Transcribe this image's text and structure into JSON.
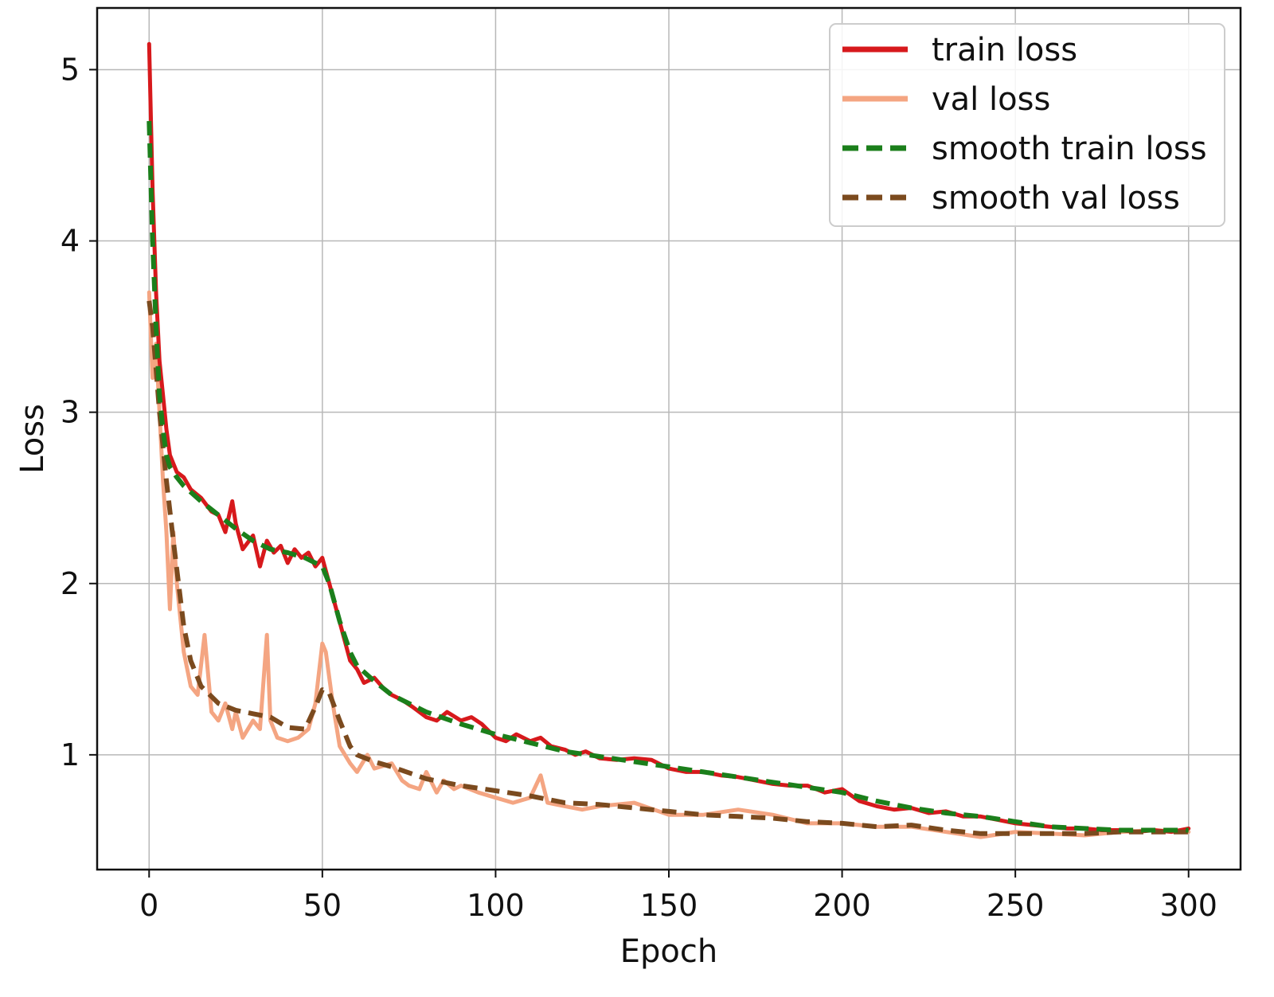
{
  "chart_data": {
    "type": "line",
    "title": "",
    "xlabel": "Epoch",
    "ylabel": "Loss",
    "xlim": [
      -15,
      315
    ],
    "ylim": [
      0.33,
      5.36
    ],
    "xticks": [
      0,
      50,
      100,
      150,
      200,
      250,
      300
    ],
    "yticks": [
      1,
      2,
      3,
      4,
      5
    ],
    "grid": true,
    "legend_position": "top-right",
    "series": [
      {
        "name": "train loss",
        "color": "#d7191c",
        "style": "solid",
        "x": [
          0,
          1,
          2,
          3,
          4,
          5,
          6,
          8,
          10,
          12,
          15,
          18,
          20,
          22,
          24,
          25,
          27,
          30,
          32,
          34,
          36,
          38,
          40,
          42,
          44,
          46,
          48,
          50,
          52,
          54,
          56,
          58,
          60,
          62,
          65,
          68,
          70,
          73,
          76,
          80,
          83,
          86,
          90,
          93,
          96,
          100,
          103,
          106,
          110,
          113,
          116,
          120,
          123,
          126,
          130,
          135,
          140,
          145,
          150,
          155,
          160,
          165,
          170,
          175,
          180,
          185,
          190,
          195,
          200,
          205,
          210,
          215,
          220,
          225,
          230,
          235,
          240,
          245,
          250,
          255,
          260,
          265,
          270,
          275,
          280,
          285,
          290,
          295,
          300
        ],
        "values": [
          5.15,
          4.3,
          3.7,
          3.3,
          3.1,
          2.9,
          2.75,
          2.65,
          2.62,
          2.55,
          2.5,
          2.42,
          2.4,
          2.3,
          2.48,
          2.35,
          2.2,
          2.28,
          2.1,
          2.25,
          2.18,
          2.22,
          2.12,
          2.2,
          2.15,
          2.18,
          2.1,
          2.15,
          2.0,
          1.85,
          1.7,
          1.55,
          1.5,
          1.42,
          1.45,
          1.38,
          1.35,
          1.32,
          1.28,
          1.22,
          1.2,
          1.25,
          1.2,
          1.22,
          1.18,
          1.1,
          1.08,
          1.12,
          1.08,
          1.1,
          1.05,
          1.03,
          1.0,
          1.02,
          0.98,
          0.97,
          0.98,
          0.97,
          0.92,
          0.9,
          0.9,
          0.88,
          0.87,
          0.85,
          0.83,
          0.82,
          0.82,
          0.78,
          0.8,
          0.73,
          0.7,
          0.68,
          0.69,
          0.66,
          0.67,
          0.64,
          0.64,
          0.62,
          0.6,
          0.59,
          0.58,
          0.57,
          0.57,
          0.56,
          0.56,
          0.55,
          0.56,
          0.55,
          0.57
        ]
      },
      {
        "name": "val loss",
        "color": "#f4a582",
        "style": "solid",
        "x": [
          0,
          1,
          2,
          3,
          4,
          5,
          6,
          7,
          8,
          10,
          12,
          14,
          16,
          18,
          20,
          22,
          24,
          25,
          27,
          30,
          32,
          34,
          35,
          37,
          40,
          43,
          46,
          48,
          50,
          51,
          53,
          55,
          58,
          60,
          63,
          65,
          70,
          73,
          75,
          78,
          80,
          83,
          85,
          88,
          90,
          95,
          100,
          105,
          110,
          113,
          115,
          120,
          125,
          130,
          140,
          150,
          160,
          170,
          180,
          190,
          200,
          210,
          220,
          230,
          240,
          250,
          260,
          270,
          280,
          290,
          300
        ],
        "values": [
          3.7,
          3.2,
          3.4,
          3.0,
          2.6,
          2.3,
          1.85,
          2.3,
          2.0,
          1.6,
          1.4,
          1.35,
          1.7,
          1.25,
          1.2,
          1.3,
          1.15,
          1.25,
          1.1,
          1.2,
          1.15,
          1.7,
          1.2,
          1.1,
          1.08,
          1.1,
          1.15,
          1.3,
          1.65,
          1.6,
          1.3,
          1.05,
          0.95,
          0.9,
          1.0,
          0.92,
          0.95,
          0.85,
          0.82,
          0.8,
          0.9,
          0.78,
          0.85,
          0.8,
          0.82,
          0.78,
          0.75,
          0.72,
          0.75,
          0.88,
          0.72,
          0.7,
          0.68,
          0.7,
          0.72,
          0.65,
          0.65,
          0.68,
          0.65,
          0.6,
          0.6,
          0.58,
          0.58,
          0.55,
          0.52,
          0.55,
          0.54,
          0.53,
          0.55,
          0.56,
          0.55
        ]
      },
      {
        "name": "smooth train loss",
        "color": "#1b7f1b",
        "style": "dashed",
        "x": [
          0,
          1,
          2,
          3,
          4,
          5,
          6,
          8,
          10,
          15,
          20,
          25,
          30,
          35,
          40,
          45,
          50,
          52,
          55,
          58,
          60,
          65,
          70,
          80,
          90,
          100,
          110,
          120,
          130,
          140,
          150,
          160,
          170,
          180,
          190,
          200,
          210,
          220,
          230,
          240,
          250,
          260,
          270,
          280,
          290,
          300
        ],
        "values": [
          4.7,
          4.0,
          3.5,
          3.1,
          2.9,
          2.75,
          2.68,
          2.62,
          2.57,
          2.48,
          2.4,
          2.32,
          2.25,
          2.2,
          2.18,
          2.15,
          2.1,
          2.0,
          1.78,
          1.6,
          1.52,
          1.43,
          1.35,
          1.25,
          1.18,
          1.12,
          1.07,
          1.02,
          0.99,
          0.96,
          0.93,
          0.9,
          0.87,
          0.84,
          0.81,
          0.78,
          0.73,
          0.69,
          0.66,
          0.64,
          0.61,
          0.58,
          0.57,
          0.56,
          0.56,
          0.56
        ]
      },
      {
        "name": "smooth val loss",
        "color": "#7b4a1e",
        "style": "dashed",
        "x": [
          0,
          1,
          2,
          3,
          4,
          5,
          7,
          10,
          12,
          15,
          20,
          25,
          30,
          35,
          40,
          45,
          48,
          50,
          52,
          55,
          58,
          60,
          65,
          70,
          80,
          90,
          100,
          110,
          120,
          130,
          140,
          150,
          160,
          170,
          180,
          190,
          200,
          210,
          220,
          230,
          240,
          250,
          260,
          270,
          280,
          290,
          300
        ],
        "values": [
          3.65,
          3.5,
          3.25,
          3.0,
          2.8,
          2.6,
          2.25,
          1.75,
          1.55,
          1.4,
          1.3,
          1.26,
          1.24,
          1.22,
          1.16,
          1.15,
          1.28,
          1.38,
          1.36,
          1.2,
          1.05,
          1.0,
          0.96,
          0.93,
          0.86,
          0.82,
          0.79,
          0.76,
          0.72,
          0.71,
          0.69,
          0.67,
          0.65,
          0.64,
          0.63,
          0.61,
          0.6,
          0.58,
          0.59,
          0.56,
          0.54,
          0.54,
          0.54,
          0.54,
          0.55,
          0.55,
          0.55
        ]
      }
    ]
  }
}
